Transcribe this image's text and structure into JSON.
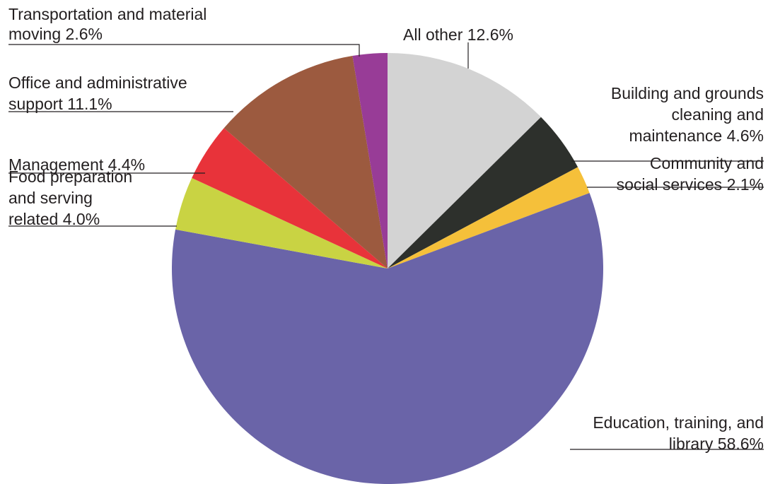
{
  "chart_data": {
    "type": "pie",
    "title": "",
    "start_angle_deg": 0,
    "direction": "clockwise",
    "slices": [
      {
        "lines": [
          "All other 12.6%"
        ],
        "label": "All other",
        "value": 12.6,
        "color": "#d3d3d3"
      },
      {
        "lines": [
          "Building and grounds",
          "cleaning and",
          "maintenance 4.6%"
        ],
        "label": "Building and grounds cleaning and maintenance",
        "value": 4.6,
        "color": "#2d302c"
      },
      {
        "lines": [
          "Community and",
          "social services 2.1%"
        ],
        "label": "Community and social services",
        "value": 2.1,
        "color": "#f5c03a"
      },
      {
        "lines": [
          "Education, training, and",
          "library 58.6%"
        ],
        "label": "Education, training, and library",
        "value": 58.6,
        "color": "#6a64a8"
      },
      {
        "lines": [
          "Food preparation",
          "and serving",
          "related 4.0%"
        ],
        "label": "Food preparation and serving related",
        "value": 4.0,
        "color": "#c9d343"
      },
      {
        "lines": [
          "Management 4.4%"
        ],
        "label": "Management",
        "value": 4.4,
        "color": "#e8333a"
      },
      {
        "lines": [
          "Office and administrative",
          "support 11.1%"
        ],
        "label": "Office and administrative support",
        "value": 11.1,
        "color": "#9c5a3f"
      },
      {
        "lines": [
          "Transportation and material",
          "moving 2.6%"
        ],
        "label": "Transportation and material moving",
        "value": 2.6,
        "color": "#983c97"
      }
    ]
  }
}
